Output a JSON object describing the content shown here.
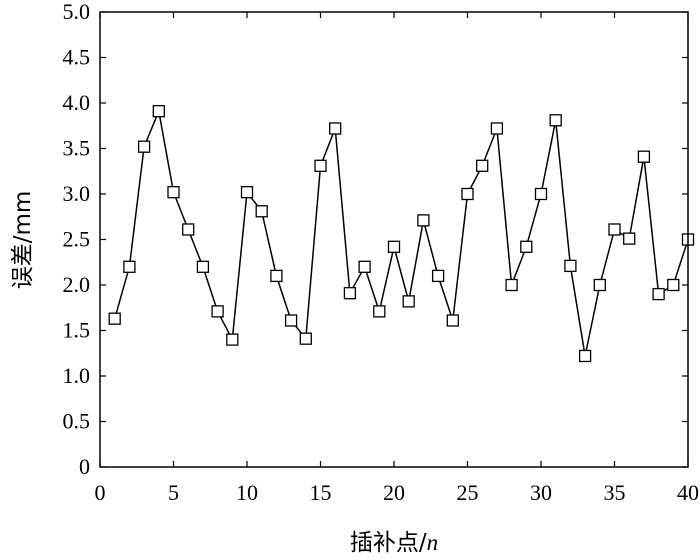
{
  "chart_data": {
    "type": "line",
    "xlabel_prefix": "插补点/",
    "xlabel_var": "n",
    "ylabel": "误差/mm",
    "xlim": [
      0,
      40
    ],
    "ylim": [
      0,
      5.0
    ],
    "xticks": [
      "0",
      "5",
      "10",
      "15",
      "20",
      "25",
      "30",
      "35",
      "40"
    ],
    "yticks": [
      "0",
      "0.5",
      "1.0",
      "1.5",
      "2.0",
      "2.5",
      "3.0",
      "3.5",
      "4.0",
      "4.5",
      "5.0"
    ],
    "grid": false,
    "marker": "square",
    "series": [
      {
        "x": [
          1,
          2,
          3,
          4,
          5,
          6,
          7,
          8,
          9,
          10,
          11,
          12,
          13,
          14,
          15,
          16,
          17,
          18,
          19,
          20,
          21,
          22,
          23,
          24,
          25,
          26,
          27,
          28,
          29,
          30,
          31,
          32,
          33,
          34,
          35,
          36,
          37,
          38,
          39,
          40
        ],
        "y": [
          1.63,
          2.2,
          3.52,
          3.91,
          3.02,
          2.61,
          2.2,
          1.71,
          1.4,
          3.02,
          2.81,
          2.1,
          1.61,
          1.41,
          3.31,
          3.72,
          1.91,
          2.2,
          1.71,
          2.42,
          1.82,
          2.71,
          2.1,
          1.61,
          3.0,
          3.31,
          3.72,
          2.0,
          2.42,
          3.0,
          3.81,
          2.21,
          1.22,
          2.0,
          2.61,
          2.51,
          3.41,
          1.9,
          2.0,
          2.5
        ]
      }
    ]
  }
}
